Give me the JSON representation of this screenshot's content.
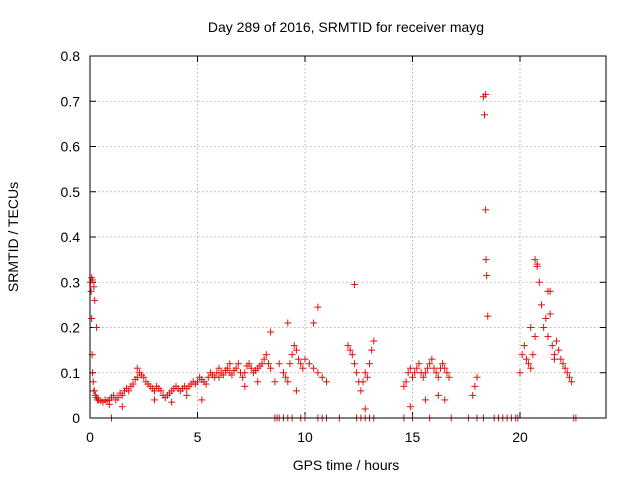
{
  "chart_data": {
    "type": "scatter",
    "title": "Day 289 of 2016, SRMTID for receiver mayg",
    "xlabel": "GPS time / hours",
    "ylabel": "SRMTID / TECUs",
    "xlim": [
      0,
      24
    ],
    "ylim": [
      0,
      0.8
    ],
    "xticks": [
      0,
      5,
      10,
      15,
      20
    ],
    "yticks": [
      0,
      0.1,
      0.2,
      0.3,
      0.4,
      0.5,
      0.6,
      0.7,
      0.8
    ],
    "ytick_labels": [
      "0",
      "0.1",
      "0.2",
      "0.3",
      "0.4",
      "0.5",
      "0.6",
      "0.7",
      "0.8"
    ],
    "grid": true,
    "marker": "+",
    "color": "#e01010",
    "series": [
      {
        "name": "SRMTID",
        "x": [
          0.02,
          0.05,
          0.08,
          0.1,
          0.12,
          0.15,
          0.18,
          0.2,
          0.25,
          0.3,
          0.35,
          0.4,
          0.5,
          0.6,
          0.7,
          0.8,
          0.9,
          1.0,
          1.1,
          1.2,
          1.3,
          1.4,
          1.5,
          1.6,
          1.7,
          1.8,
          1.9,
          2.0,
          2.1,
          2.2,
          2.3,
          2.4,
          2.5,
          2.6,
          2.7,
          2.8,
          2.9,
          3.0,
          3.1,
          3.2,
          3.3,
          3.4,
          3.5,
          3.6,
          3.7,
          3.8,
          3.9,
          4.0,
          4.1,
          4.2,
          4.3,
          4.4,
          4.5,
          4.6,
          4.7,
          4.8,
          4.9,
          5.0,
          5.1,
          5.2,
          5.3,
          5.4,
          5.5,
          5.6,
          5.7,
          5.8,
          5.9,
          6.0,
          6.1,
          6.2,
          6.3,
          6.4,
          6.5,
          6.6,
          6.7,
          6.8,
          6.9,
          7.0,
          7.1,
          7.2,
          7.3,
          7.4,
          7.5,
          7.6,
          7.7,
          7.8,
          7.9,
          8.0,
          8.1,
          8.2,
          8.3,
          8.4,
          8.6,
          8.8,
          9.0,
          9.1,
          9.2,
          9.3,
          9.4,
          9.5,
          9.6,
          9.7,
          9.8,
          9.9,
          10.0,
          10.2,
          10.4,
          10.6,
          10.8,
          11.0,
          12.0,
          12.1,
          12.2,
          12.3,
          12.4,
          12.5,
          12.6,
          12.7,
          12.8,
          12.9,
          13.0,
          13.1,
          14.6,
          14.7,
          14.8,
          14.9,
          15.0,
          15.1,
          15.2,
          15.3,
          15.4,
          15.5,
          15.6,
          15.7,
          15.8,
          15.9,
          16.0,
          16.1,
          16.2,
          16.3,
          16.4,
          16.5,
          16.6,
          16.7,
          17.8,
          17.9,
          18.0,
          18.3,
          18.35,
          18.4,
          18.42,
          18.45,
          18.5,
          20.0,
          20.1,
          20.2,
          20.3,
          20.4,
          20.5,
          20.6,
          20.7,
          20.8,
          20.9,
          21.0,
          21.1,
          21.2,
          21.3,
          21.4,
          21.5,
          21.6,
          21.7,
          21.8,
          21.9,
          22.0,
          22.1,
          22.2,
          22.3,
          22.4,
          0.08,
          0.12,
          0.18,
          0.22,
          0.3,
          0.9,
          1.5,
          2.2,
          3.0,
          3.8,
          4.5,
          5.2,
          6.0,
          6.5,
          7.2,
          7.8,
          8.4,
          9.2,
          9.6,
          10.4,
          10.6,
          12.3,
          12.8,
          13.2,
          14.9,
          15.6,
          16.2,
          16.5,
          18.4,
          20.5,
          20.7,
          20.8,
          21.3,
          21.4,
          21.6,
          1.0,
          8.6,
          8.7,
          8.8,
          9.0,
          9.2,
          9.4,
          9.8,
          10.0,
          10.6,
          10.8,
          11.0,
          11.6,
          12.4,
          12.6,
          12.8,
          13.0,
          13.2,
          14.6,
          15.0,
          15.8,
          16.8,
          17.6,
          18.0,
          18.3,
          18.8,
          19.0,
          19.2,
          19.4,
          19.6,
          19.8,
          19.9,
          22.5,
          22.6
        ],
        "y": [
          0.3,
          0.28,
          0.22,
          0.14,
          0.1,
          0.08,
          0.06,
          0.06,
          0.05,
          0.045,
          0.04,
          0.04,
          0.038,
          0.035,
          0.04,
          0.038,
          0.04,
          0.045,
          0.05,
          0.04,
          0.045,
          0.055,
          0.05,
          0.06,
          0.065,
          0.06,
          0.07,
          0.075,
          0.085,
          0.09,
          0.1,
          0.095,
          0.09,
          0.08,
          0.075,
          0.07,
          0.065,
          0.06,
          0.07,
          0.065,
          0.06,
          0.05,
          0.045,
          0.05,
          0.055,
          0.06,
          0.065,
          0.07,
          0.065,
          0.06,
          0.065,
          0.07,
          0.065,
          0.07,
          0.075,
          0.08,
          0.075,
          0.08,
          0.09,
          0.085,
          0.08,
          0.075,
          0.09,
          0.1,
          0.095,
          0.09,
          0.1,
          0.11,
          0.1,
          0.095,
          0.105,
          0.11,
          0.1,
          0.095,
          0.105,
          0.11,
          0.12,
          0.1,
          0.09,
          0.1,
          0.115,
          0.12,
          0.11,
          0.1,
          0.105,
          0.11,
          0.115,
          0.12,
          0.13,
          0.14,
          0.12,
          0.11,
          0.08,
          0.12,
          0.1,
          0.09,
          0.08,
          0.12,
          0.14,
          0.16,
          0.15,
          0.13,
          0.12,
          0.11,
          0.13,
          0.12,
          0.11,
          0.1,
          0.09,
          0.08,
          0.16,
          0.15,
          0.14,
          0.12,
          0.1,
          0.08,
          0.06,
          0.08,
          0.1,
          0.09,
          0.12,
          0.15,
          0.07,
          0.08,
          0.1,
          0.11,
          0.09,
          0.1,
          0.11,
          0.12,
          0.1,
          0.09,
          0.1,
          0.11,
          0.12,
          0.13,
          0.11,
          0.1,
          0.09,
          0.11,
          0.12,
          0.11,
          0.1,
          0.09,
          0.05,
          0.07,
          0.09,
          0.71,
          0.67,
          0.46,
          0.35,
          0.315,
          0.225,
          0.1,
          0.14,
          0.16,
          0.13,
          0.12,
          0.11,
          0.14,
          0.18,
          0.34,
          0.3,
          0.25,
          0.2,
          0.22,
          0.18,
          0.28,
          0.16,
          0.14,
          0.17,
          0.15,
          0.13,
          0.12,
          0.11,
          0.1,
          0.09,
          0.08,
          0.31,
          0.305,
          0.29,
          0.26,
          0.2,
          0.03,
          0.025,
          0.11,
          0.04,
          0.035,
          0.05,
          0.04,
          0.09,
          0.12,
          0.07,
          0.08,
          0.19,
          0.21,
          0.06,
          0.21,
          0.245,
          0.295,
          0.02,
          0.17,
          0.025,
          0.04,
          0.05,
          0.04,
          0.715,
          0.2,
          0.35,
          0.335,
          0.28,
          0.23,
          0.13,
          0,
          0,
          0,
          0,
          0,
          0,
          0,
          0,
          0,
          0,
          0,
          0,
          0,
          0,
          0,
          0,
          0,
          0,
          0,
          0,
          0,
          0,
          0,
          0,
          0,
          0,
          0,
          0,
          0,
          0,
          0,
          0,
          0,
          0
        ]
      }
    ]
  }
}
